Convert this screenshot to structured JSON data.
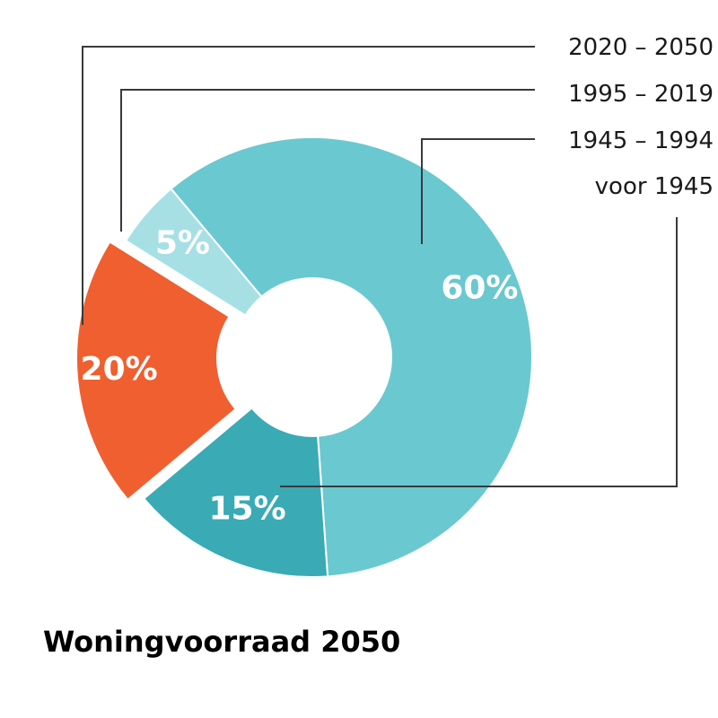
{
  "chart_data": {
    "type": "pie",
    "title": "Woningvoorraad 2050",
    "slices": [
      {
        "category": "voor 1945",
        "value": 60,
        "label": "60%",
        "color": "#6ac8d0"
      },
      {
        "category": "1945 – 1994",
        "value": 15,
        "label": "15%",
        "color": "#3aaab5"
      },
      {
        "category": "1995 – 2019",
        "value": 20,
        "label": "20%",
        "color": "#f05f2f"
      },
      {
        "category": "2020 – 2050",
        "value": 5,
        "label": "5%",
        "color": "#a6e0e4"
      }
    ],
    "legend": [
      "2020 – 2050",
      "1995 – 2019",
      "1945 – 1994",
      "voor 1945"
    ],
    "legend_placement": "top-right"
  }
}
